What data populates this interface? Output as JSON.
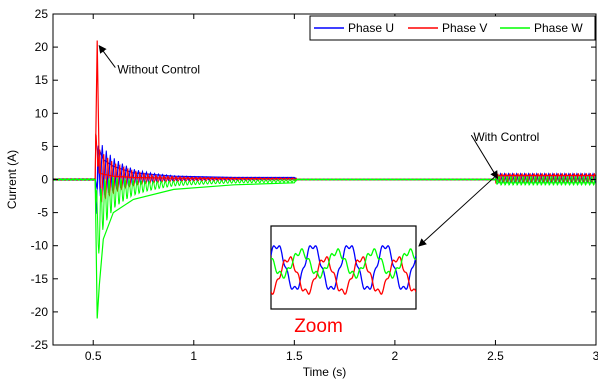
{
  "chart_data": {
    "type": "line",
    "title": "",
    "xlabel": "Time (s)",
    "ylabel": "Current (A)",
    "xlim": [
      0.3,
      3.0
    ],
    "ylim": [
      -25,
      25
    ],
    "xticks": [
      0.5,
      1,
      1.5,
      2,
      2.5,
      3
    ],
    "xtick_labels": [
      "0.5",
      "1",
      "1.5",
      "2",
      "2.5",
      "3"
    ],
    "yticks": [
      -25,
      -20,
      -15,
      -10,
      -5,
      0,
      5,
      10,
      15,
      20,
      25
    ],
    "ytick_labels": [
      "-25",
      "-20",
      "-15",
      "-10",
      "-5",
      "0",
      "5",
      "10",
      "15",
      "20",
      "25"
    ],
    "grid": false,
    "legend_position": "top-right",
    "series": [
      {
        "name": "Phase U",
        "color": "#0000ff",
        "x": [
          0.3,
          0.51,
          0.52,
          0.53,
          0.55,
          0.6,
          0.7,
          0.9,
          1.2,
          1.5,
          1.51,
          2.5,
          2.52,
          3.0
        ],
        "y": [
          0.0,
          0.0,
          -1.5,
          4.5,
          3.0,
          2.0,
          1.0,
          0.5,
          0.3,
          0.3,
          0.0,
          0.0,
          0.6,
          0.6
        ]
      },
      {
        "name": "Phase V",
        "color": "#ff0000",
        "x": [
          0.3,
          0.51,
          0.52,
          0.53,
          0.55,
          0.6,
          0.7,
          0.9,
          1.5,
          1.51,
          2.5,
          2.52,
          3.0
        ],
        "y": [
          0.0,
          0.0,
          21.0,
          1.0,
          0.8,
          0.5,
          0.3,
          0.2,
          0.1,
          0.0,
          0.0,
          0.6,
          0.6
        ]
      },
      {
        "name": "Phase W",
        "color": "#00ff00",
        "x": [
          0.3,
          0.51,
          0.52,
          0.53,
          0.55,
          0.6,
          0.7,
          0.9,
          1.2,
          1.5,
          1.51,
          2.5,
          2.52,
          3.0
        ],
        "y": [
          0.0,
          0.0,
          -21.0,
          -16.0,
          -9.0,
          -5.0,
          -3.0,
          -1.5,
          -0.8,
          -0.5,
          0.0,
          0.0,
          -0.5,
          -0.5
        ]
      }
    ],
    "annotations": [
      {
        "text": "Without Control",
        "target": [
          0.52,
          20.5
        ],
        "text_at": [
          0.62,
          16.0
        ]
      },
      {
        "text": "With Control",
        "target": [
          2.5,
          0.5
        ],
        "text_at": [
          2.39,
          5.8
        ]
      }
    ],
    "inset": {
      "label": "Zoom",
      "source": [
        2.5,
        0.5
      ]
    }
  }
}
